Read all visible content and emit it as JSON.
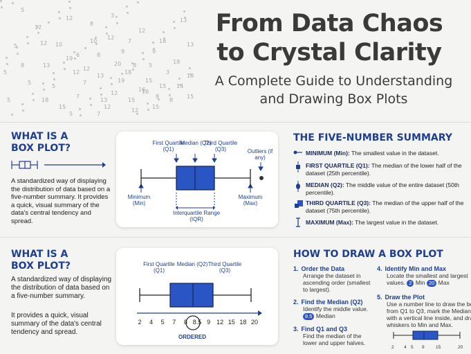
{
  "header": {
    "title_line1": "From Data Chaos",
    "title_line2": "to Crystal Clarity",
    "subtitle_line1": "A Complete Guide to Understanding",
    "subtitle_line2": "and Drawing Box Plots",
    "scatter_numbers": [
      "5",
      "12",
      "8",
      "3",
      "12",
      "5",
      "13",
      "12",
      "8",
      "9",
      "12",
      "18",
      "18",
      "18",
      "12",
      "7",
      "20",
      "8",
      "19",
      "15",
      "9",
      "3",
      "5",
      "18",
      "15",
      "7",
      "13",
      "15",
      "16",
      "8",
      "14",
      "13",
      "12",
      "8",
      "5",
      "10",
      "12",
      "7",
      "5",
      "8",
      "15",
      "19",
      "12",
      "13",
      "16",
      "15",
      "10",
      "5",
      "12",
      "18",
      "13",
      "5",
      "12",
      "6",
      "7",
      "15",
      "5"
    ]
  },
  "section1": {
    "heading_line1": "WHAT IS A",
    "heading_line2": "BOX PLOT?",
    "description": "A standardized way of displaying the distribution of data based on a five-number summary. It provides a quick, visual summary of the data's central tendency and spread.",
    "diagram": {
      "q1_label": "First Quartile (Q1)",
      "median_label": "Median (Q2)",
      "q3_label": "Third Quartile (Q3)",
      "outliers_label": "Outliers (if any)",
      "min_label": "Minimum (Min)",
      "max_label": "Maximum (Max)",
      "iqr_label": "Interquartile Range (IQR)"
    }
  },
  "five_number": {
    "heading": "THE FIVE-NUMBER SUMMARY",
    "items": [
      {
        "term": "MINIMUM (Min):",
        "text": "The smallest value in the dataset."
      },
      {
        "term": "FIRST QUARTILE (Q1):",
        "text": "The median of the lower half of the dataset (25th percentile)."
      },
      {
        "term": "MEDIAN (Q2):",
        "text": "The middle value of the entire dataset (50th percentile)."
      },
      {
        "term": "THIRD QUARTILE (Q3):",
        "text": "The median of the upper half of the dataset (75th percentile)."
      },
      {
        "term": "MAXIMUM (Max):",
        "text": "The largest value in the dataset."
      }
    ]
  },
  "section2": {
    "heading_line1": "WHAT IS A",
    "heading_line2": "BOX PLOT?",
    "paragraph1": "A standardized way of displaying the distribution of data based on a five-number summary.",
    "paragraph2": "It provides a quick, visual summary of the data's central tendency and spread.",
    "diagram": {
      "q1_label": "First Quartile (Q1)",
      "median_label": "Median (Q2)",
      "q3_label": "Third Quartile (Q3)",
      "numbers": [
        "2",
        "4",
        "5",
        "7",
        "8",
        "8.5",
        "9",
        "12",
        "15",
        "18",
        "20"
      ],
      "ordered_label": "ORDERED"
    }
  },
  "how_to": {
    "heading": "HOW TO DRAW A BOX PLOT",
    "steps": [
      {
        "num": "1.",
        "title": "Order the Data",
        "text": "Arrange the dataset in ascending order (smallest to largest)."
      },
      {
        "num": "2.",
        "title": "Find the Median (Q2)",
        "text": "Identify the middle value.",
        "badge": "8.5",
        "badge_label": "Median"
      },
      {
        "num": "3.",
        "title": "Find Q1 and Q3",
        "text": "Find the median of the lower and upper halves."
      },
      {
        "num": "4.",
        "title": "Identify Min and Max",
        "text": "Locate the smallest and largest values.",
        "badge_min": "2",
        "min_label": "Min",
        "badge_max": "20",
        "max_label": "Max"
      },
      {
        "num": "5.",
        "title": "Draw the Plot",
        "text": "Use a number line to draw the box from Q1 to Q3, mark the Median with a vertical line inside, and draw whiskers to Min and Max."
      }
    ],
    "mini_axis": [
      "2",
      "4",
      "5",
      "9",
      "15",
      "20"
    ]
  },
  "colors": {
    "accent": "#1e3f8f",
    "box_fill": "#2a55c5",
    "title": "#3a3a3a"
  }
}
